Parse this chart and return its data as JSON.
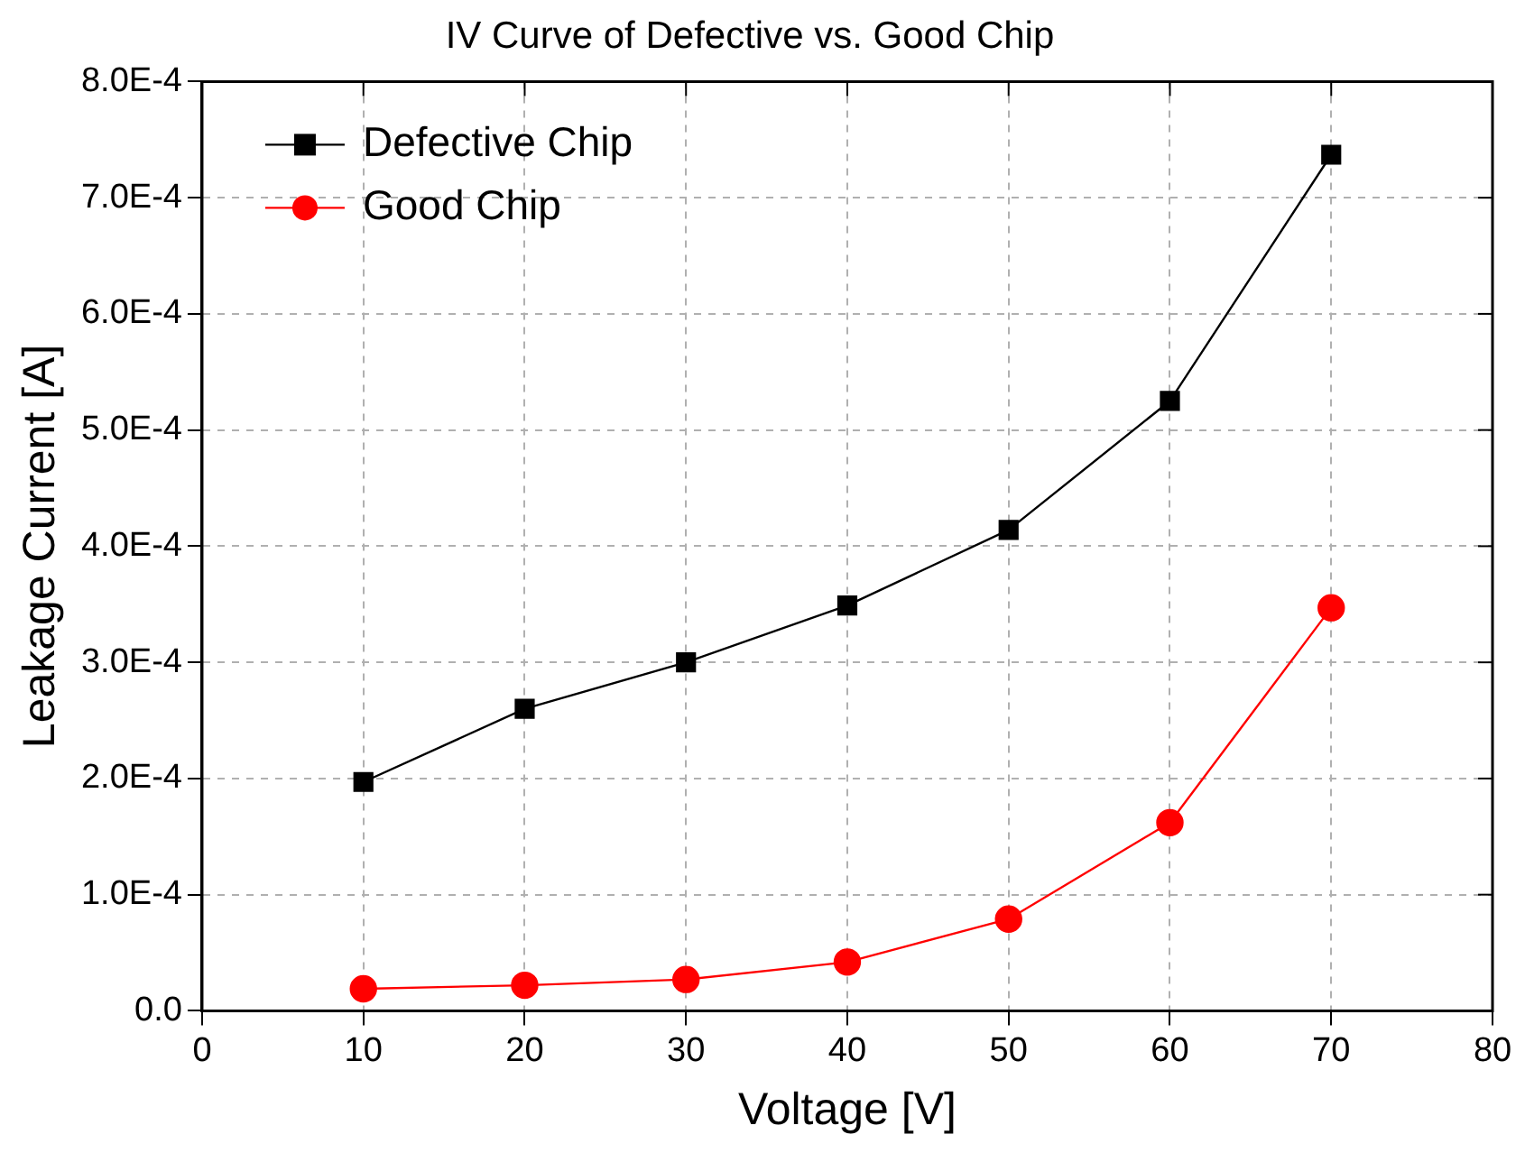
{
  "chart_data": {
    "type": "line",
    "title": "IV Curve of Defective vs. Good Chip",
    "xlabel": "Voltage [V]",
    "ylabel": "Leakage Current [A]",
    "x": [
      10,
      20,
      30,
      40,
      50,
      60,
      70
    ],
    "series": [
      {
        "name": "Defective Chip",
        "color": "#000000",
        "marker": "square",
        "values": [
          0.000197,
          0.00026,
          0.0003,
          0.000349,
          0.000414,
          0.000525,
          0.000737
        ]
      },
      {
        "name": "Good Chip",
        "color": "#ff0000",
        "marker": "circle",
        "values": [
          1.9e-05,
          2.2e-05,
          2.7e-05,
          4.2e-05,
          7.9e-05,
          0.000162,
          0.000347
        ]
      }
    ],
    "xlim": [
      0,
      80
    ],
    "xticks": [
      0,
      10,
      20,
      30,
      40,
      50,
      60,
      70,
      80
    ],
    "ylim": [
      0,
      0.0008
    ],
    "yticks": [
      {
        "value": 0,
        "label": "0.0"
      },
      {
        "value": 0.0001,
        "label": "1.0E-4"
      },
      {
        "value": 0.0002,
        "label": "2.0E-4"
      },
      {
        "value": 0.0003,
        "label": "3.0E-4"
      },
      {
        "value": 0.0004,
        "label": "4.0E-4"
      },
      {
        "value": 0.0005,
        "label": "5.0E-4"
      },
      {
        "value": 0.0006,
        "label": "6.0E-4"
      },
      {
        "value": 0.0007,
        "label": "7.0E-4"
      },
      {
        "value": 0.0008,
        "label": "8.0E-4"
      }
    ],
    "grid": true,
    "legend": "top left",
    "line_style": "solid"
  }
}
